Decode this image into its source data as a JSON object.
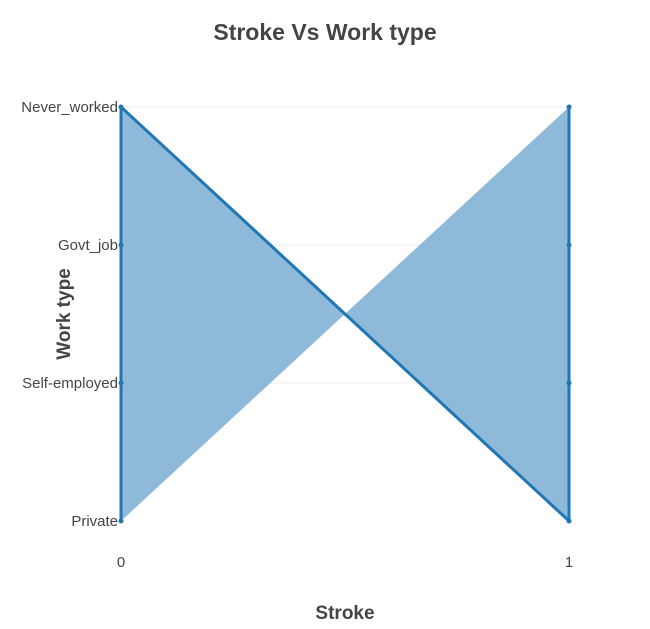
{
  "chart_data": {
    "type": "area",
    "title": "Stroke Vs Work type",
    "xlabel": "Stroke",
    "ylabel": "Work type",
    "x_ticks": [
      "0",
      "1"
    ],
    "xlim": [
      0,
      1
    ],
    "categories": [
      "Private",
      "Self-employed",
      "Govt_job",
      "Never_worked"
    ],
    "series": [
      {
        "points": [
          {
            "x": 0,
            "y": "Private"
          },
          {
            "x": 0,
            "y": "Self-employed"
          },
          {
            "x": 0,
            "y": "Govt_job"
          },
          {
            "x": 0,
            "y": "Never_worked"
          },
          {
            "x": 1,
            "y": "Private"
          },
          {
            "x": 1,
            "y": "Self-employed"
          },
          {
            "x": 1,
            "y": "Govt_job"
          },
          {
            "x": 1,
            "y": "Never_worked"
          }
        ]
      }
    ],
    "grid": true,
    "colors": {
      "line": "#1f77b4",
      "fill": "#8fb9d9",
      "text": "#444444",
      "grid": "#eeeeee"
    }
  }
}
